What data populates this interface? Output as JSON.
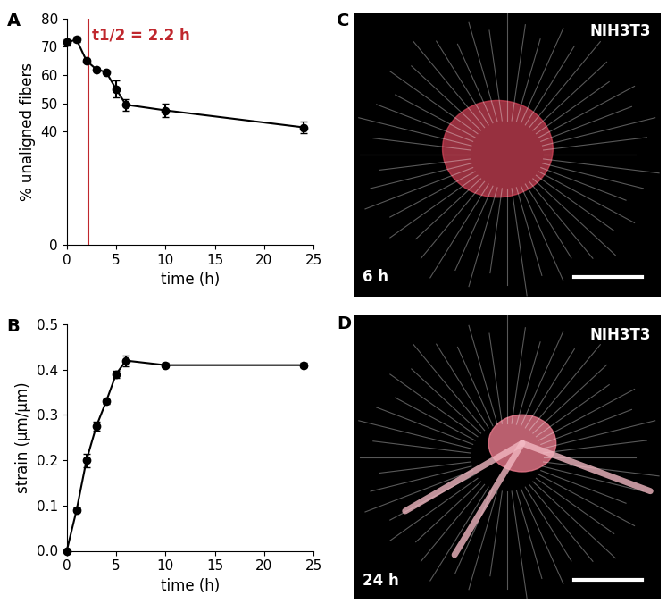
{
  "chart_data": [
    {
      "type": "line",
      "title": "A",
      "x_label": "time (h)",
      "y_label": "% unaligned fibers",
      "x": [
        0,
        1,
        2,
        3,
        4,
        5,
        6,
        10,
        24
      ],
      "values": [
        71.5,
        72.5,
        65,
        62,
        61,
        55,
        49.5,
        47.5,
        41.5
      ],
      "error": [
        1,
        1,
        0.5,
        0.5,
        0.5,
        3,
        2,
        2.5,
        2
      ],
      "color": "#000000",
      "marker": "circle",
      "xlim": [
        0,
        25
      ],
      "xticks": [
        0,
        5,
        10,
        15,
        20,
        25
      ],
      "ylim": [
        0,
        80
      ],
      "yticks": [
        0,
        40,
        50,
        60,
        70,
        80
      ],
      "half_life": 2.2,
      "half_life_label": "t1/2 = 2.2 h",
      "half_life_color": "#c0272d"
    },
    {
      "type": "line",
      "title": "B",
      "x_label": "time (h)",
      "y_label": "strain (µm/µm)",
      "x": [
        0,
        1,
        2,
        3,
        4,
        5,
        6,
        10,
        24
      ],
      "values": [
        0,
        0.09,
        0.2,
        0.275,
        0.33,
        0.39,
        0.42,
        0.41,
        0.41
      ],
      "error": [
        0,
        0.005,
        0.015,
        0.01,
        0.005,
        0.008,
        0.012,
        0.005,
        0.005
      ],
      "color": "#000000",
      "marker": "circle",
      "xlim": [
        0,
        25
      ],
      "xticks": [
        0,
        5,
        10,
        15,
        20,
        25
      ],
      "ylim": [
        0,
        0.5
      ],
      "yticks": [
        {
          "value": 0,
          "label": "0.0"
        },
        {
          "value": 0.1,
          "label": "0.1"
        },
        {
          "value": 0.2,
          "label": "0.2"
        },
        {
          "value": 0.3,
          "label": "0.3"
        },
        {
          "value": 0.4,
          "label": "0.4"
        },
        {
          "value": 0.5,
          "label": "0.5"
        }
      ]
    }
  ],
  "images": [
    {
      "panel": "C",
      "cell_line": "NIH3T3",
      "time": "6 h"
    },
    {
      "panel": "D",
      "cell_line": "NIH3T3",
      "time": "24 h"
    }
  ]
}
